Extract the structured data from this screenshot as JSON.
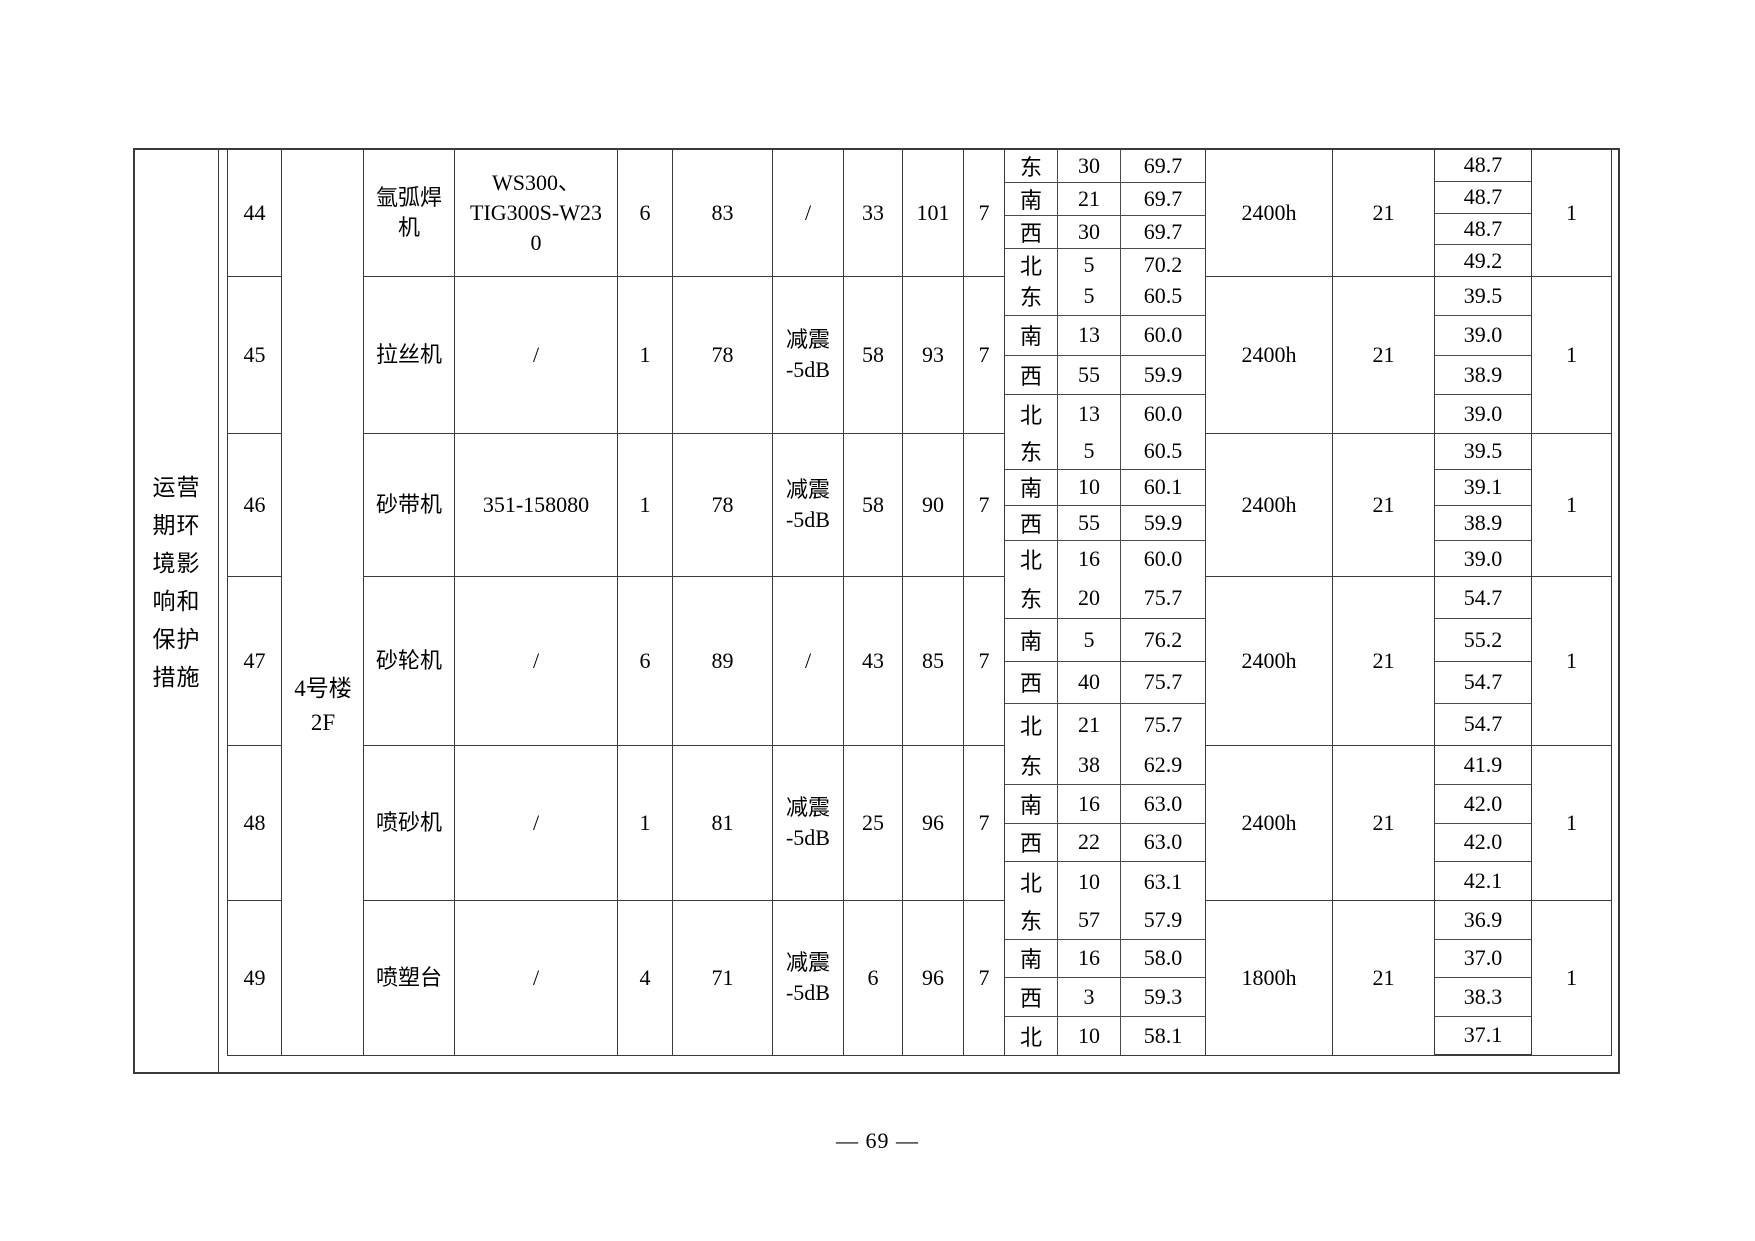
{
  "page": {
    "number_label": "— 69 —"
  },
  "sidebar_label": "运营\n期环\n境影\n响和\n保护\n措施",
  "building_label": "4号楼\n2F",
  "rows": [
    {
      "no": "44",
      "device": "氩弧焊\n机",
      "model": "WS300、\nTIG300S-W23\n0",
      "qty": "6",
      "noise": "83",
      "measure": "/",
      "v1": "33",
      "v2": "101",
      "v3": "7",
      "directions": [
        [
          "东",
          "30",
          "69.7"
        ],
        [
          "南",
          "21",
          "69.7"
        ],
        [
          "西",
          "30",
          "69.7"
        ],
        [
          "北",
          "5",
          "70.2"
        ]
      ],
      "hours": "2400h",
      "v4": "21",
      "results": [
        "48.7",
        "48.7",
        "48.7",
        "49.2"
      ],
      "v5": "1"
    },
    {
      "no": "45",
      "device": "拉丝机",
      "model": "/",
      "qty": "1",
      "noise": "78",
      "measure": "减震\n-5dB",
      "v1": "58",
      "v2": "93",
      "v3": "7",
      "directions": [
        [
          "东",
          "5",
          "60.5"
        ],
        [
          "南",
          "13",
          "60.0"
        ],
        [
          "西",
          "55",
          "59.9"
        ],
        [
          "北",
          "13",
          "60.0"
        ]
      ],
      "hours": "2400h",
      "v4": "21",
      "results": [
        "39.5",
        "39.0",
        "38.9",
        "39.0"
      ],
      "v5": "1"
    },
    {
      "no": "46",
      "device": "砂带机",
      "model": "351-158080",
      "qty": "1",
      "noise": "78",
      "measure": "减震\n-5dB",
      "v1": "58",
      "v2": "90",
      "v3": "7",
      "directions": [
        [
          "东",
          "5",
          "60.5"
        ],
        [
          "南",
          "10",
          "60.1"
        ],
        [
          "西",
          "55",
          "59.9"
        ],
        [
          "北",
          "16",
          "60.0"
        ]
      ],
      "hours": "2400h",
      "v4": "21",
      "results": [
        "39.5",
        "39.1",
        "38.9",
        "39.0"
      ],
      "v5": "1"
    },
    {
      "no": "47",
      "device": "砂轮机",
      "model": "/",
      "qty": "6",
      "noise": "89",
      "measure": "/",
      "v1": "43",
      "v2": "85",
      "v3": "7",
      "directions": [
        [
          "东",
          "20",
          "75.7"
        ],
        [
          "南",
          "5",
          "76.2"
        ],
        [
          "西",
          "40",
          "75.7"
        ],
        [
          "北",
          "21",
          "75.7"
        ]
      ],
      "hours": "2400h",
      "v4": "21",
      "results": [
        "54.7",
        "55.2",
        "54.7",
        "54.7"
      ],
      "v5": "1"
    },
    {
      "no": "48",
      "device": "喷砂机",
      "model": "/",
      "qty": "1",
      "noise": "81",
      "measure": "减震\n-5dB",
      "v1": "25",
      "v2": "96",
      "v3": "7",
      "directions": [
        [
          "东",
          "38",
          "62.9"
        ],
        [
          "南",
          "16",
          "63.0"
        ],
        [
          "西",
          "22",
          "63.0"
        ],
        [
          "北",
          "10",
          "63.1"
        ]
      ],
      "hours": "2400h",
      "v4": "21",
      "results": [
        "41.9",
        "42.0",
        "42.0",
        "42.1"
      ],
      "v5": "1"
    },
    {
      "no": "49",
      "device": "喷塑台",
      "model": "/",
      "qty": "4",
      "noise": "71",
      "measure": "减震\n-5dB",
      "v1": "6",
      "v2": "96",
      "v3": "7",
      "directions": [
        [
          "东",
          "57",
          "57.9"
        ],
        [
          "南",
          "16",
          "58.0"
        ],
        [
          "西",
          "3",
          "59.3"
        ],
        [
          "北",
          "10",
          "58.1"
        ]
      ],
      "hours": "1800h",
      "v4": "21",
      "results": [
        "36.9",
        "37.0",
        "38.3",
        "37.1"
      ],
      "v5": "1"
    }
  ]
}
